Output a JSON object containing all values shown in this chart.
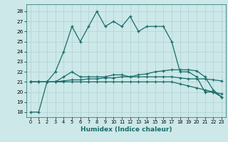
{
  "xlabel": "Humidex (Indice chaleur)",
  "background_color": "#cce8e8",
  "line_color": "#1a6b6b",
  "grid_color": "#aacccc",
  "xlim": [
    -0.5,
    23.5
  ],
  "ylim": [
    17.5,
    28.7
  ],
  "xticks": [
    0,
    1,
    2,
    3,
    4,
    5,
    6,
    7,
    8,
    9,
    10,
    11,
    12,
    13,
    14,
    15,
    16,
    17,
    18,
    19,
    20,
    21,
    22,
    23
  ],
  "yticks": [
    18,
    19,
    20,
    21,
    22,
    23,
    24,
    25,
    26,
    27,
    28
  ],
  "series": {
    "main": [
      18,
      18,
      21,
      22,
      24,
      26.5,
      25,
      26.5,
      28,
      26.5,
      27,
      26.5,
      27.5,
      26,
      26.5,
      26.5,
      26.5,
      25,
      22,
      22,
      21.5,
      20,
      20,
      19.5
    ],
    "line2": [
      21,
      21,
      21,
      21,
      21.5,
      22,
      21.5,
      21.5,
      21.5,
      21.5,
      21.7,
      21.7,
      21.5,
      21.7,
      21.8,
      22.0,
      22.1,
      22.2,
      22.2,
      22.2,
      22.1,
      21.5,
      20.2,
      19.5
    ],
    "line3": [
      21,
      21,
      21,
      21,
      21.1,
      21.2,
      21.2,
      21.3,
      21.3,
      21.4,
      21.4,
      21.5,
      21.5,
      21.5,
      21.5,
      21.5,
      21.5,
      21.5,
      21.4,
      21.3,
      21.3,
      21.3,
      21.2,
      21.1
    ],
    "line4": [
      21,
      21,
      21,
      21,
      21.0,
      21.0,
      21.0,
      21.0,
      21.0,
      21.0,
      21.0,
      21.0,
      21.0,
      21.0,
      21.0,
      21.0,
      21.0,
      21.0,
      20.8,
      20.6,
      20.4,
      20.2,
      20.0,
      19.8
    ]
  }
}
